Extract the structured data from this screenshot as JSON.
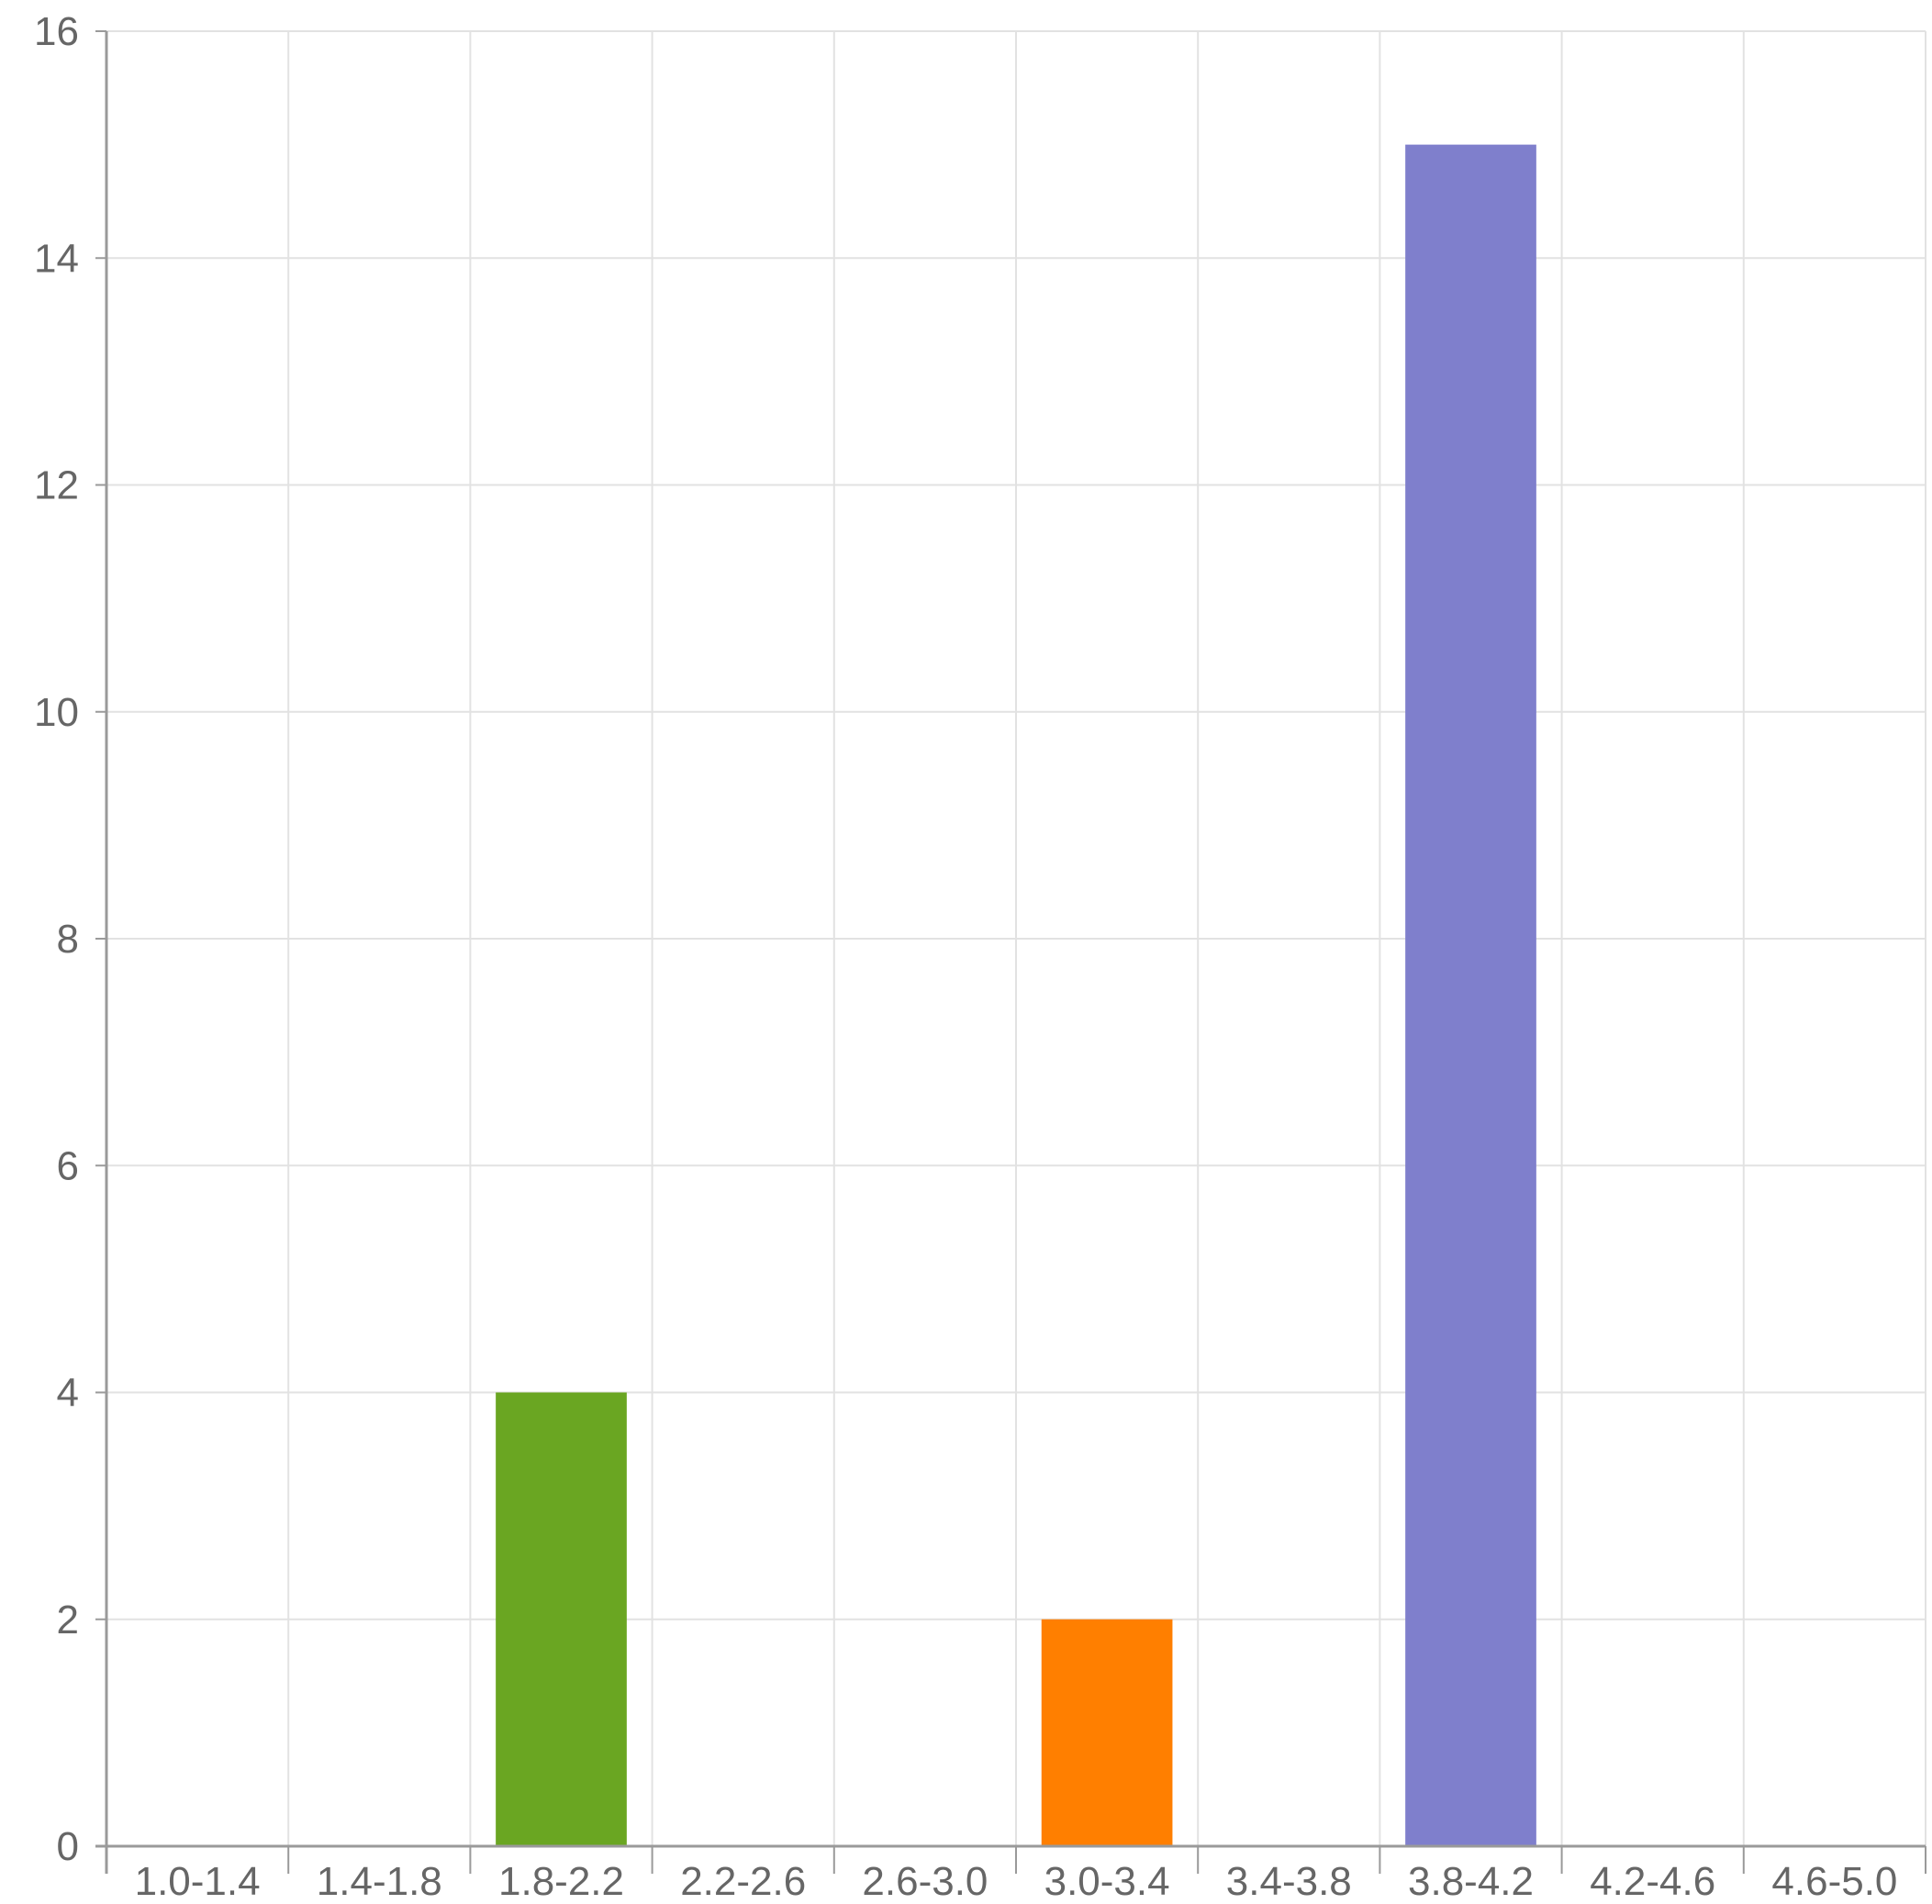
{
  "chart_data": {
    "type": "bar",
    "title": "",
    "xlabel": "",
    "ylabel": "",
    "categories": [
      "1.0-1.4",
      "1.4-1.8",
      "1.8-2.2",
      "2.2-2.6",
      "2.6-3.0",
      "3.0-3.4",
      "3.4-3.8",
      "3.8-4.2",
      "4.2-4.6",
      "4.6-5.0"
    ],
    "values": [
      0,
      0,
      4,
      0,
      0,
      2,
      0,
      15,
      0,
      0
    ],
    "bar_colors": [
      "#6aa622",
      "#6aa622",
      "#6aa622",
      "#6aa622",
      "#6aa622",
      "#ff7f00",
      "#7f7fcc",
      "#7f7fcc",
      "#7f7fcc",
      "#7f7fcc"
    ],
    "ylim": [
      0,
      16
    ],
    "yticks": [
      "0",
      "2",
      "4",
      "6",
      "8",
      "10",
      "12",
      "14",
      "16"
    ],
    "grid": true,
    "legend": "none"
  },
  "colors": {
    "background": "#ffffff",
    "grid": "#e2e2e2",
    "axis": "#9a9a9a",
    "tick_text": "#666666"
  }
}
